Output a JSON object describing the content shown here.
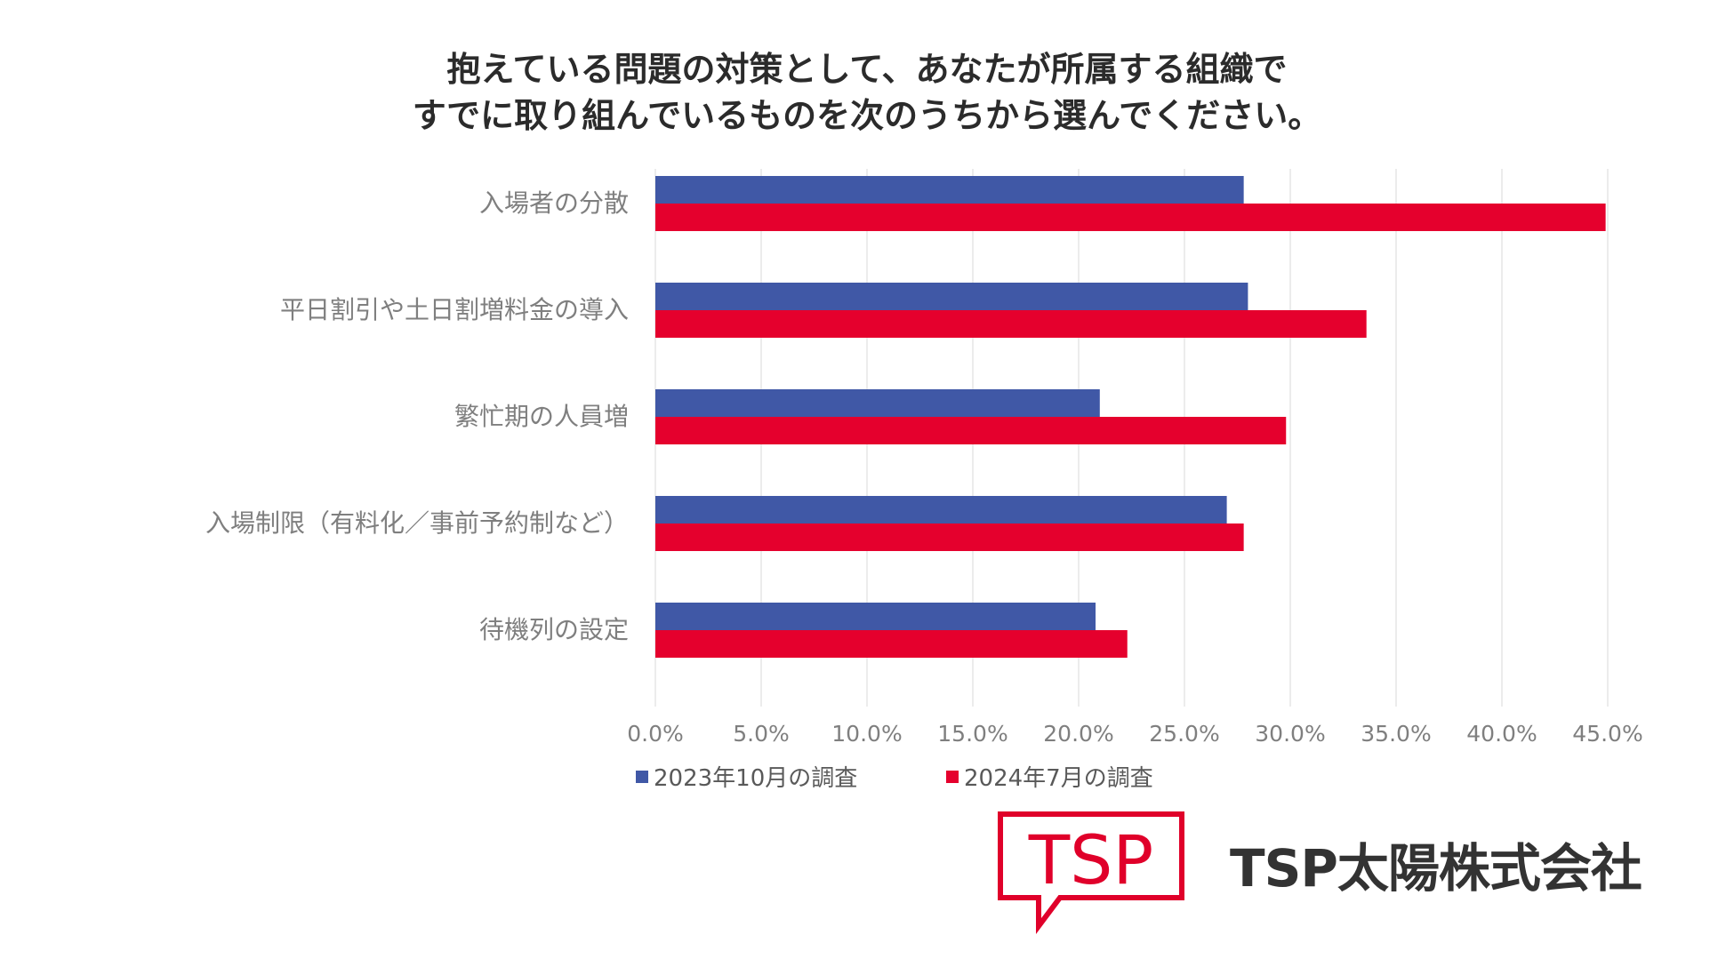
{
  "title": {
    "line1": "抱えている問題の対策として、あなたが所属する組織で",
    "line2": "すでに取り組んでいるものを次のうちから選んでください。"
  },
  "colors": {
    "series_2023": "#4058a6",
    "series_2024": "#e5002d",
    "grid": "#e6e6e6",
    "axis_text": "#7f7f7f",
    "logo": "#e0002a"
  },
  "chart_data": {
    "type": "bar",
    "orientation": "horizontal",
    "categories": [
      "入場者の分散",
      "平日割引や土日割増料金の導入",
      "繁忙期の人員増",
      "入場制限（有料化／事前予約制など）",
      "待機列の設定"
    ],
    "series": [
      {
        "name": "2023年10月の調査",
        "values": [
          27.8,
          28.0,
          21.0,
          27.0,
          20.8
        ]
      },
      {
        "name": "2024年7月の調査",
        "values": [
          44.9,
          33.6,
          29.8,
          27.8,
          22.3
        ]
      }
    ],
    "xlim": [
      0,
      45
    ],
    "xticks": [
      "0.0%",
      "5.0%",
      "10.0%",
      "15.0%",
      "20.0%",
      "25.0%",
      "30.0%",
      "35.0%",
      "40.0%",
      "45.0%"
    ],
    "grid": true,
    "legend_position": "bottom"
  },
  "logo": {
    "text": "TSP",
    "company_name": "TSP太陽株式会社"
  }
}
